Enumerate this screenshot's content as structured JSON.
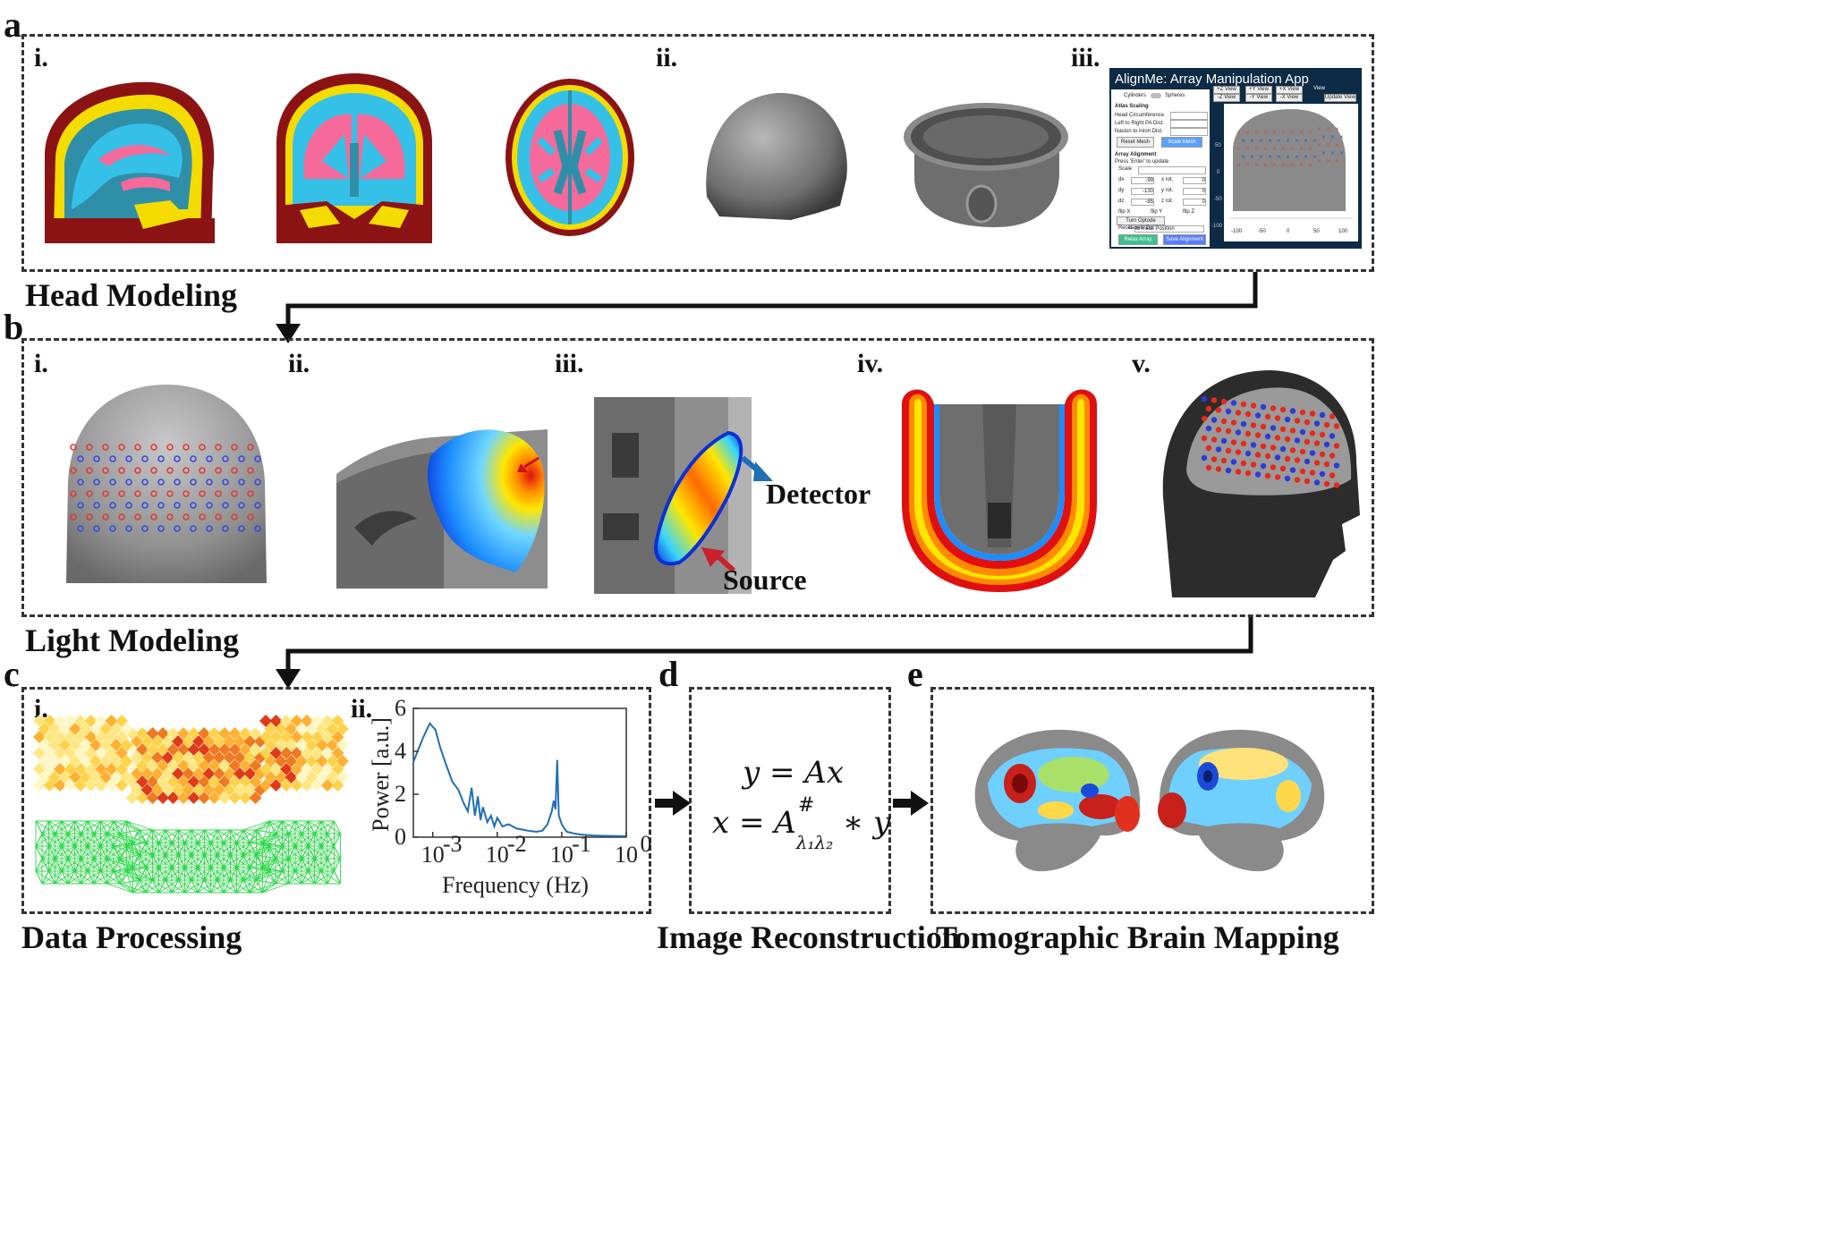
{
  "panels": {
    "a": {
      "letter": "a",
      "title": "Head Modeling",
      "subs": [
        "i.",
        "ii.",
        "iii."
      ]
    },
    "b": {
      "letter": "b",
      "title": "Light Modeling",
      "subs": [
        "i.",
        "ii.",
        "iii.",
        "iv.",
        "v."
      ]
    },
    "c": {
      "letter": "c",
      "title": "Data Processing",
      "subs": [
        "i.",
        "ii."
      ]
    },
    "d": {
      "letter": "d",
      "title": "Image Reconstruction"
    },
    "e": {
      "letter": "e",
      "title": "Tomographic Brain Mapping"
    }
  },
  "app": {
    "title": "AlignMe: Array Manipulation App",
    "toggle_left": "Cylinders",
    "toggle_right": "Spheres",
    "atlas_scaling": "Atlas Scaling",
    "fields": [
      "Head Circumference",
      "Left to Right PA Dist.",
      "Nasion to Inion Dist."
    ],
    "reset_mesh": "Reset Mesh",
    "scale_mesh": "Scale Mesh",
    "array_alignment": "Array Alignment",
    "press_hint": "Press 'Enter' to update",
    "scale_label": "Scale",
    "rows": [
      {
        "d": "dx",
        "dv": "-99",
        "r": "x rot.",
        "rv": "0"
      },
      {
        "d": "dy",
        "dv": "-130",
        "r": "y rot.",
        "rv": "0"
      },
      {
        "d": "dz",
        "dv": "-85",
        "r": "z rot.",
        "rv": "0"
      }
    ],
    "flips": [
      "flip X",
      "flip Y",
      "flip Z"
    ],
    "optode_labels": "Turn Optode Labels On",
    "reset_label": "Reset",
    "reset_value": "to Initial Position",
    "relax_array": "Relax Array",
    "save_alignment": "Save Alignment",
    "view_buttons": [
      "+Z View",
      "-Z View",
      "-Y View",
      "+Y View",
      "+X View",
      "-X View"
    ],
    "view_label": "View",
    "update_view": "Update View",
    "x_ticks": [
      "-100",
      "-50",
      "0",
      "50",
      "100"
    ],
    "y_ticks": [
      "50",
      "0",
      "-50",
      "-100"
    ]
  },
  "light": {
    "detector_label": "Detector",
    "source_label": "Source"
  },
  "spectrum": {
    "ylabel": "Power [a.u.]",
    "xlabel": "Frequency (Hz)",
    "y_ticks": [
      "6",
      "4",
      "2",
      "0"
    ]
  },
  "chart_data": {
    "type": "line",
    "title": "",
    "xlabel": "Frequency (Hz)",
    "ylabel": "Power [a.u.]",
    "x_scale": "log",
    "xlim": [
      0.0005,
      1
    ],
    "ylim": [
      0,
      6
    ],
    "x_tick_values": [
      0.001,
      0.01,
      0.1,
      1
    ],
    "y_tick_values": [
      0,
      2,
      4,
      6
    ],
    "series": [
      {
        "name": "power spectrum",
        "color": "#1f6fb5",
        "x": [
          0.0005,
          0.0007,
          0.0009,
          0.0011,
          0.0013,
          0.0016,
          0.002,
          0.0025,
          0.003,
          0.0035,
          0.004,
          0.0045,
          0.005,
          0.0055,
          0.006,
          0.007,
          0.008,
          0.009,
          0.01,
          0.012,
          0.015,
          0.02,
          0.025,
          0.03,
          0.04,
          0.05,
          0.06,
          0.07,
          0.075,
          0.08,
          0.085,
          0.09,
          0.1,
          0.11,
          0.12,
          0.15,
          0.2,
          0.3,
          0.5,
          0.7,
          1.0
        ],
        "y": [
          3.5,
          4.6,
          5.3,
          5.0,
          4.2,
          3.4,
          2.6,
          2.2,
          1.6,
          1.2,
          2.3,
          1.0,
          1.9,
          0.8,
          1.4,
          0.7,
          1.0,
          0.5,
          0.9,
          0.5,
          0.6,
          0.4,
          0.35,
          0.3,
          0.25,
          0.3,
          0.6,
          1.2,
          1.7,
          1.3,
          3.6,
          1.0,
          0.6,
          0.4,
          0.25,
          0.18,
          0.12,
          0.08,
          0.06,
          0.05,
          0.04
        ]
      }
    ]
  },
  "equations": {
    "eq1": "y = Ax",
    "eq2_prefix": "x = A",
    "eq2_sup": "#",
    "eq2_sub": "λ₁λ₂",
    "eq2_suffix": " ∗ y"
  },
  "colors": {
    "maroon": "#8b1313",
    "yellow": "#f5dc00",
    "blue": "#35c0e8",
    "pink": "#f56a9a",
    "dark_blue_app": "#0d2b45",
    "arrow": "#111111"
  }
}
